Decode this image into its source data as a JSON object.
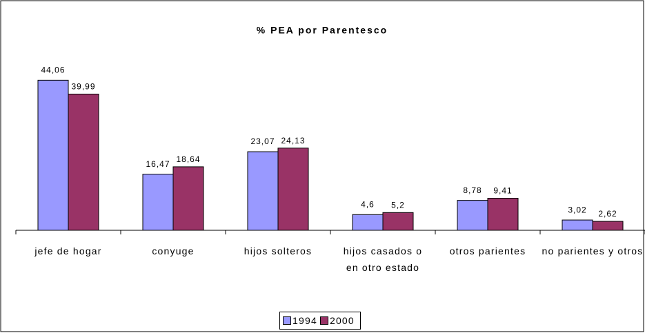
{
  "chart_data": {
    "type": "bar",
    "title": "% PEA por Parentesco",
    "categories": [
      "jefe de hogar",
      "conyuge",
      "hijos solteros",
      "hijos casados o en otro estado",
      "otros parientes",
      "no parientes y otros"
    ],
    "series": [
      {
        "name": "1994",
        "color": "#9999ff",
        "values": [
          44.06,
          16.47,
          23.07,
          4.6,
          8.78,
          3.02
        ],
        "value_labels": [
          "44,06",
          "16,47",
          "23,07",
          "4,6",
          "8,78",
          "3,02"
        ]
      },
      {
        "name": "2000",
        "color": "#993366",
        "values": [
          39.99,
          18.64,
          24.13,
          5.2,
          9.41,
          2.62
        ],
        "value_labels": [
          "39,99",
          "18,64",
          "24,13",
          "5,2",
          "9,41",
          "2,62"
        ]
      }
    ],
    "ylim": [
      0,
      50
    ],
    "legend": "bottom"
  }
}
